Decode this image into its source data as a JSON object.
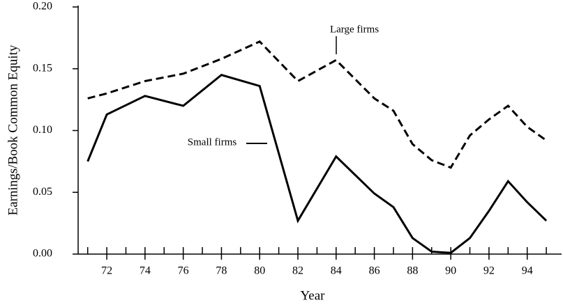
{
  "chart_data": {
    "type": "line",
    "x_label": "Year",
    "y_label": "Earnings/Book Common Equity",
    "x": [
      71,
      72,
      74,
      76,
      78,
      80,
      82,
      84,
      86,
      87,
      88,
      89,
      90,
      91,
      92,
      93,
      94,
      95
    ],
    "series": [
      {
        "name": "Large firms",
        "color": "#000000",
        "dashed": true,
        "values": [
          0.126,
          0.13,
          0.14,
          0.146,
          0.158,
          0.172,
          0.14,
          0.157,
          0.126,
          0.116,
          0.089,
          0.076,
          0.07,
          0.096,
          0.109,
          0.12,
          0.103,
          0.092
        ]
      },
      {
        "name": "Small firms",
        "color": "#000000",
        "dashed": false,
        "values": [
          0.075,
          0.113,
          0.128,
          0.12,
          0.145,
          0.136,
          0.027,
          0.079,
          0.049,
          0.038,
          0.013,
          0.002,
          0.001,
          0.013,
          0.035,
          0.059,
          0.042,
          0.027
        ]
      }
    ],
    "xlim": [
      70.5,
      95.8
    ],
    "ylim": [
      0,
      0.2
    ],
    "xticks": [
      72,
      74,
      76,
      78,
      80,
      82,
      84,
      86,
      88,
      90,
      92,
      94
    ],
    "xminorticks": [
      71,
      72,
      73,
      74,
      75,
      76,
      77,
      78,
      79,
      80,
      81,
      82,
      83,
      84,
      85,
      86,
      87,
      88,
      89,
      90,
      91,
      92,
      93,
      94,
      95
    ],
    "yticks": [
      {
        "value": 0,
        "label": "0.00"
      },
      {
        "value": 0.05,
        "label": "0.05"
      },
      {
        "value": 0.1,
        "label": "0.10"
      },
      {
        "value": 0.15,
        "label": "0.15"
      },
      {
        "value": 0.2,
        "label": "0.20"
      }
    ],
    "grid": false
  }
}
